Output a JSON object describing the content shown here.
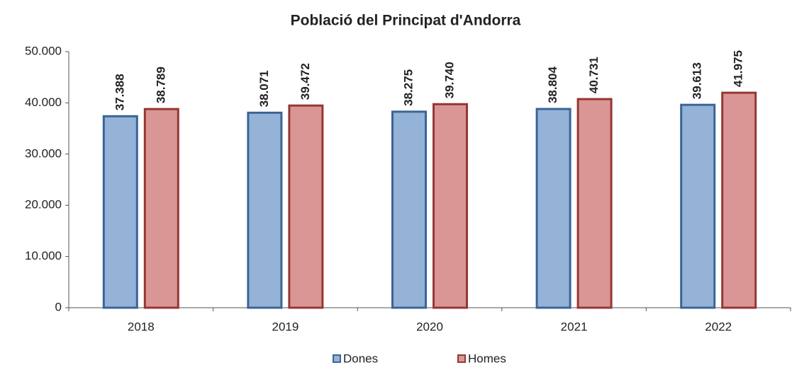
{
  "chart_data": {
    "type": "bar",
    "title": "Població del Principat d'Andorra",
    "categories": [
      "2018",
      "2019",
      "2020",
      "2021",
      "2022"
    ],
    "series": [
      {
        "name": "Dones",
        "color": "#95b3d7",
        "edge_color": "#3b6496",
        "values": [
          37388,
          38071,
          38275,
          38804,
          39613
        ],
        "value_labels": [
          "37.388",
          "38.071",
          "38.275",
          "38.804",
          "39.613"
        ]
      },
      {
        "name": "Homes",
        "color": "#d99694",
        "edge_color": "#953735",
        "values": [
          38789,
          39472,
          39740,
          40731,
          41975
        ],
        "value_labels": [
          "38.789",
          "39.472",
          "39.740",
          "40.731",
          "41.975"
        ]
      }
    ],
    "ylim": [
      0,
      50000
    ],
    "yticks": [
      0,
      {
        "value": 10000,
        "label": "10.000"
      },
      {
        "value": 20000,
        "label": "20.000"
      },
      {
        "value": 30000,
        "label": "30.000"
      },
      {
        "value": 40000,
        "label": "40.000"
      },
      {
        "value": 50000,
        "label": "50.000"
      }
    ],
    "legend": "bottom"
  }
}
